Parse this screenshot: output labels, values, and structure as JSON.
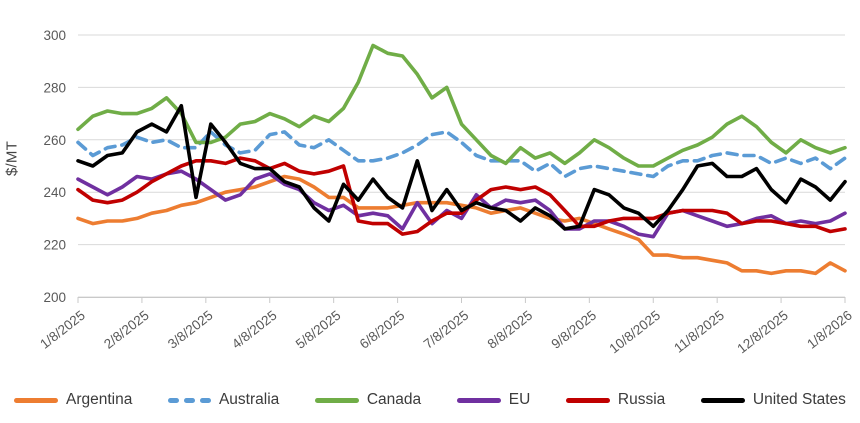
{
  "chart_data": {
    "type": "line",
    "title": "",
    "ylabel": "$/MT",
    "ylim": [
      200,
      300
    ],
    "y_ticks": [
      200,
      220,
      240,
      260,
      280,
      300
    ],
    "x_tick_labels": [
      "1/8/2025",
      "2/8/2025",
      "3/8/2025",
      "4/8/2025",
      "5/8/2025",
      "6/8/2025",
      "7/8/2025",
      "8/8/2025",
      "9/8/2025",
      "10/8/2025",
      "11/8/2025",
      "12/8/2025",
      "1/8/2026"
    ],
    "sampling": "weekly",
    "grid": true,
    "legend_position": "bottom",
    "axis_text_color": "#595959",
    "grid_color": "#d9d9d9",
    "series": [
      {
        "name": "Argentina",
        "color": "#ED7D31",
        "dash": false,
        "values": [
          230,
          228,
          229,
          229,
          230,
          232,
          233,
          235,
          236,
          238,
          240,
          241,
          242,
          244,
          246,
          245,
          242,
          238,
          238,
          234,
          234,
          234,
          235,
          236,
          236,
          236,
          235,
          234,
          232,
          233,
          234,
          232,
          230,
          229,
          230,
          228,
          226,
          224,
          222,
          216,
          216,
          215,
          215,
          214,
          213,
          210,
          210,
          209,
          210,
          210,
          209,
          213,
          210
        ]
      },
      {
        "name": "Australia",
        "color": "#5B9BD5",
        "dash": true,
        "values": [
          259,
          254,
          257,
          258,
          261,
          259,
          260,
          257,
          257,
          263,
          258,
          255,
          256,
          262,
          263,
          258,
          257,
          260,
          256,
          252,
          252,
          253,
          255,
          258,
          262,
          263,
          259,
          254,
          252,
          252,
          252,
          248,
          251,
          246,
          249,
          250,
          249,
          248,
          247,
          246,
          250,
          252,
          252,
          254,
          255,
          254,
          254,
          251,
          253,
          251,
          253,
          249,
          253
        ]
      },
      {
        "name": "Canada",
        "color": "#70AD47",
        "dash": false,
        "values": [
          264,
          269,
          271,
          270,
          270,
          272,
          276,
          270,
          259,
          259,
          261,
          266,
          267,
          270,
          268,
          265,
          269,
          267,
          272,
          282,
          296,
          293,
          292,
          285,
          276,
          280,
          266,
          260,
          254,
          251,
          257,
          253,
          255,
          251,
          255,
          260,
          257,
          253,
          250,
          250,
          253,
          256,
          258,
          261,
          266,
          269,
          265,
          259,
          255,
          260,
          257,
          255,
          257
        ]
      },
      {
        "name": "EU",
        "color": "#7030A0",
        "dash": false,
        "values": [
          245,
          242,
          239,
          242,
          246,
          245,
          247,
          248,
          245,
          241,
          237,
          239,
          245,
          247,
          243,
          241,
          236,
          233,
          235,
          231,
          232,
          231,
          226,
          236,
          228,
          233,
          230,
          239,
          234,
          237,
          236,
          237,
          233,
          226,
          226,
          229,
          229,
          227,
          224,
          223,
          232,
          233,
          231,
          229,
          227,
          228,
          230,
          231,
          228,
          229,
          228,
          229,
          232
        ]
      },
      {
        "name": "Russia",
        "color": "#C00000",
        "dash": false,
        "values": [
          241,
          237,
          236,
          237,
          240,
          244,
          247,
          250,
          252,
          252,
          251,
          253,
          252,
          249,
          251,
          248,
          247,
          248,
          250,
          229,
          228,
          228,
          224,
          225,
          229,
          232,
          232,
          237,
          241,
          242,
          241,
          242,
          239,
          233,
          227,
          227,
          229,
          230,
          230,
          230,
          232,
          233,
          233,
          233,
          232,
          228,
          229,
          229,
          228,
          227,
          227,
          225,
          226
        ]
      },
      {
        "name": "United States",
        "color": "#000000",
        "dash": false,
        "values": [
          252,
          250,
          254,
          255,
          263,
          266,
          263,
          273,
          238,
          266,
          259,
          251,
          249,
          249,
          244,
          242,
          234,
          229,
          243,
          237,
          245,
          238,
          234,
          252,
          233,
          241,
          233,
          236,
          234,
          233,
          229,
          234,
          231,
          226,
          227,
          241,
          239,
          234,
          232,
          227,
          233,
          241,
          250,
          251,
          246,
          246,
          249,
          241,
          236,
          245,
          242,
          237,
          244
        ]
      }
    ]
  }
}
